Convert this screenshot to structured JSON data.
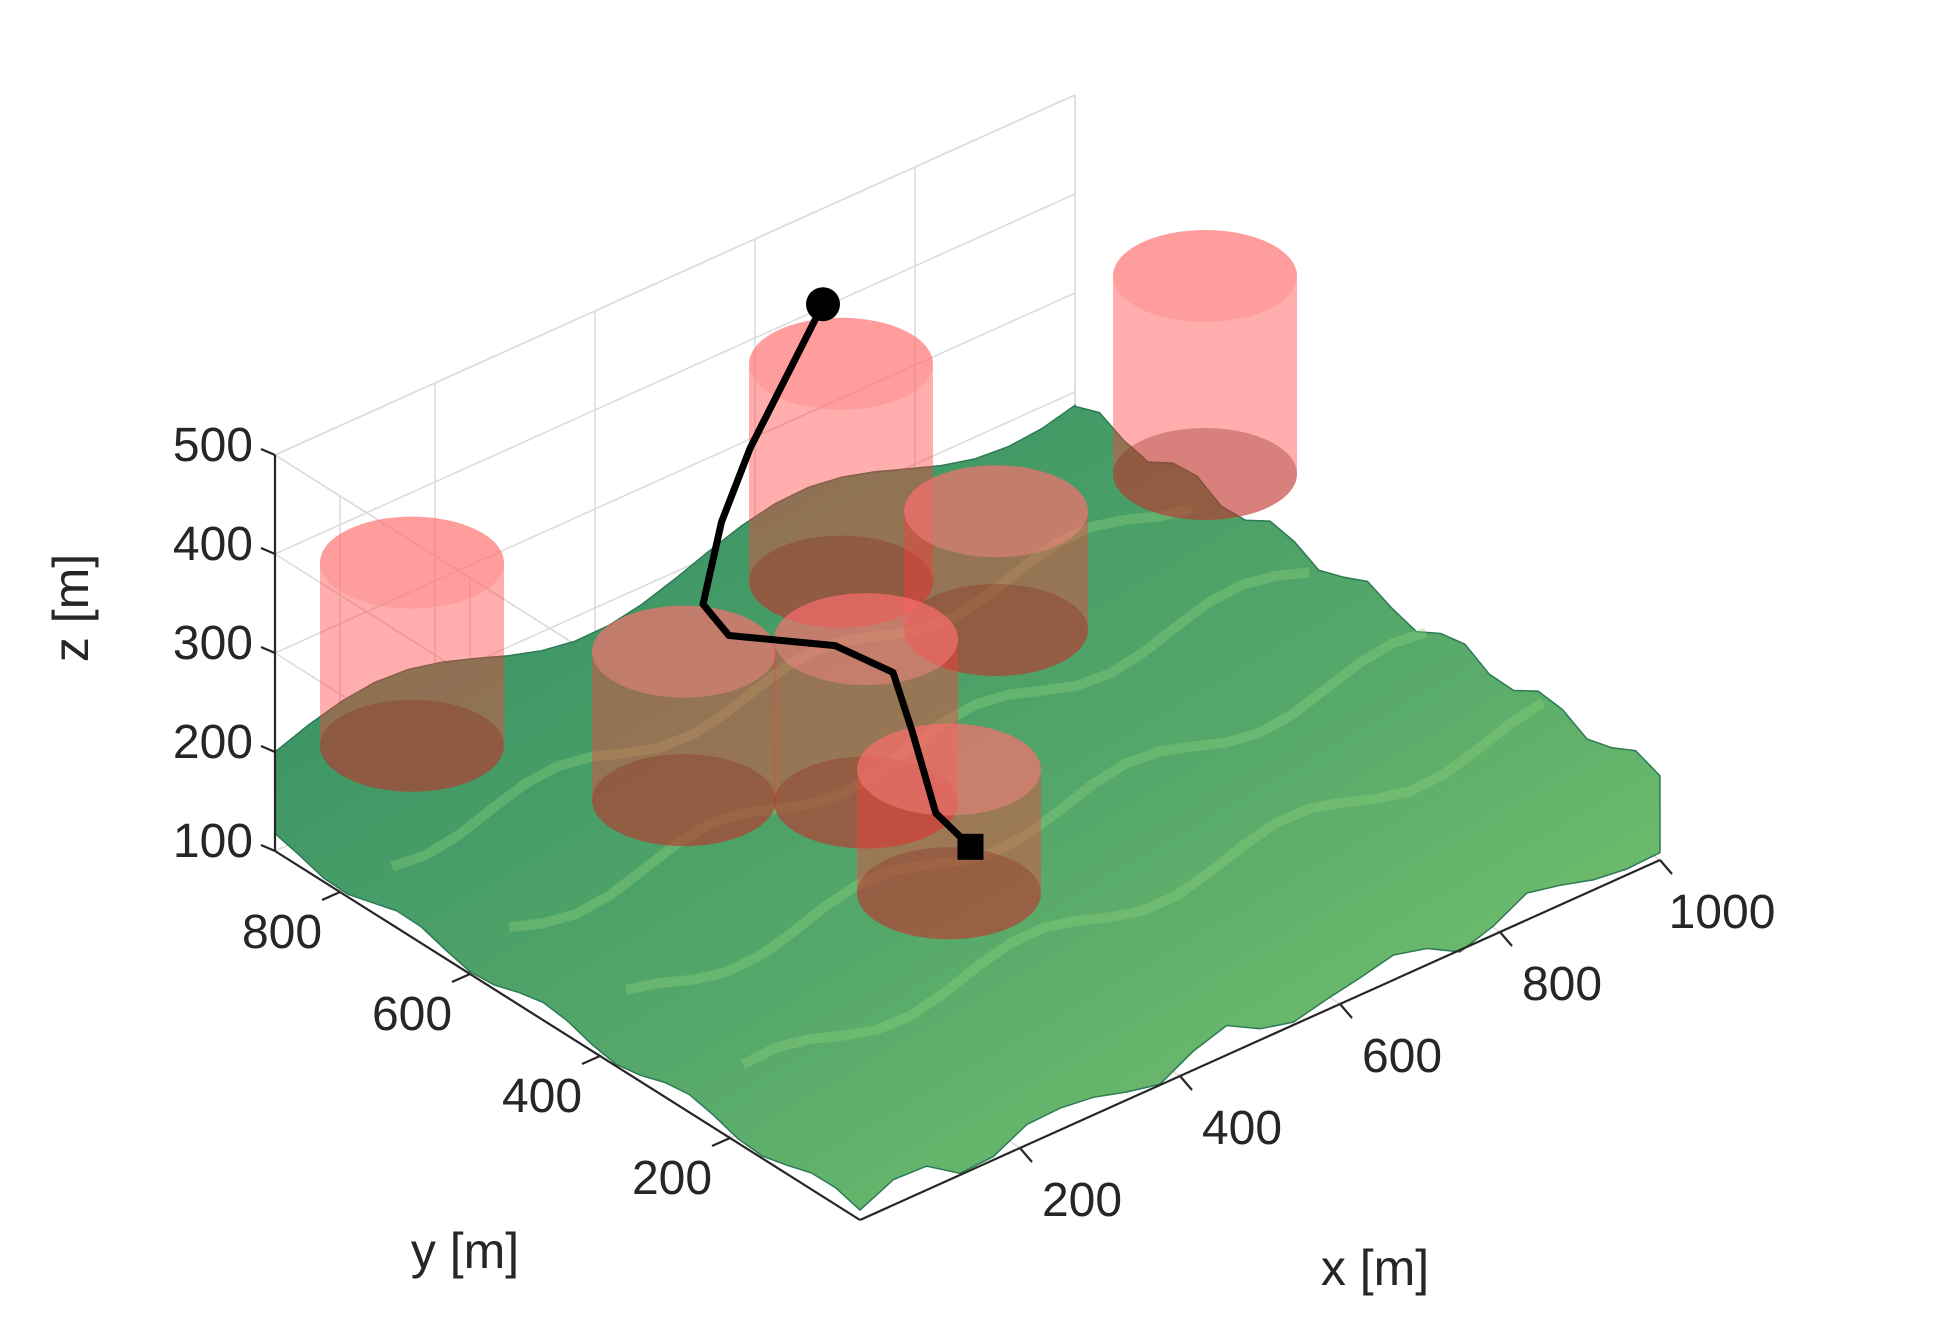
{
  "chart_data": {
    "type": "surface3d",
    "title": "",
    "xlabel": "x [m]",
    "ylabel": "y [m]",
    "zlabel": "z [m]",
    "xlim": [
      0,
      1000
    ],
    "ylim": [
      0,
      900
    ],
    "zlim": [
      100,
      500
    ],
    "xticks": [
      200,
      400,
      600,
      800,
      1000
    ],
    "yticks": [
      200,
      400,
      600,
      800
    ],
    "zticks": [
      100,
      200,
      300,
      400,
      500
    ],
    "xtick_labels": [
      "200",
      "400",
      "600",
      "800",
      "1000"
    ],
    "ytick_labels": [
      "200",
      "400",
      "600",
      "800"
    ],
    "ztick_labels": [
      "100",
      "200",
      "300",
      "400",
      "500"
    ],
    "grid": true,
    "terrain": {
      "colormap": "green",
      "color_low": "#2e8b62",
      "color_high": "#7fca6f"
    },
    "obstacles": {
      "shape": "cylinder",
      "color": "#ff3b3b",
      "cylinders": [
        {
          "x": 90,
          "y": 800,
          "z_bottom": 215,
          "z_top": 400,
          "radius": 60
        },
        {
          "x": 300,
          "y": 640,
          "z_bottom": 150,
          "z_top": 300,
          "radius": 60
        },
        {
          "x": 430,
          "y": 520,
          "z_bottom": 150,
          "z_top": 315,
          "radius": 60
        },
        {
          "x": 610,
          "y": 780,
          "z_bottom": 200,
          "z_top": 420,
          "radius": 60
        },
        {
          "x": 690,
          "y": 640,
          "z_bottom": 180,
          "z_top": 300,
          "radius": 60
        },
        {
          "x": 420,
          "y": 380,
          "z_bottom": 120,
          "z_top": 245,
          "radius": 60
        },
        {
          "x": 1000,
          "y": 700,
          "z_bottom": 200,
          "z_top": 400,
          "radius": 60
        }
      ]
    },
    "path": {
      "color": "#000000",
      "start_marker": "circle",
      "end_marker": "square",
      "points": [
        {
          "x": 620,
          "y": 820,
          "z": 460
        },
        {
          "x": 480,
          "y": 760,
          "z": 390
        },
        {
          "x": 420,
          "y": 730,
          "z": 350
        },
        {
          "x": 340,
          "y": 660,
          "z": 325
        },
        {
          "x": 340,
          "y": 620,
          "z": 310
        },
        {
          "x": 440,
          "y": 580,
          "z": 280
        },
        {
          "x": 480,
          "y": 540,
          "z": 255
        },
        {
          "x": 455,
          "y": 480,
          "z": 230
        },
        {
          "x": 440,
          "y": 425,
          "z": 175
        },
        {
          "x": 455,
          "y": 390,
          "z": 150
        }
      ]
    }
  }
}
